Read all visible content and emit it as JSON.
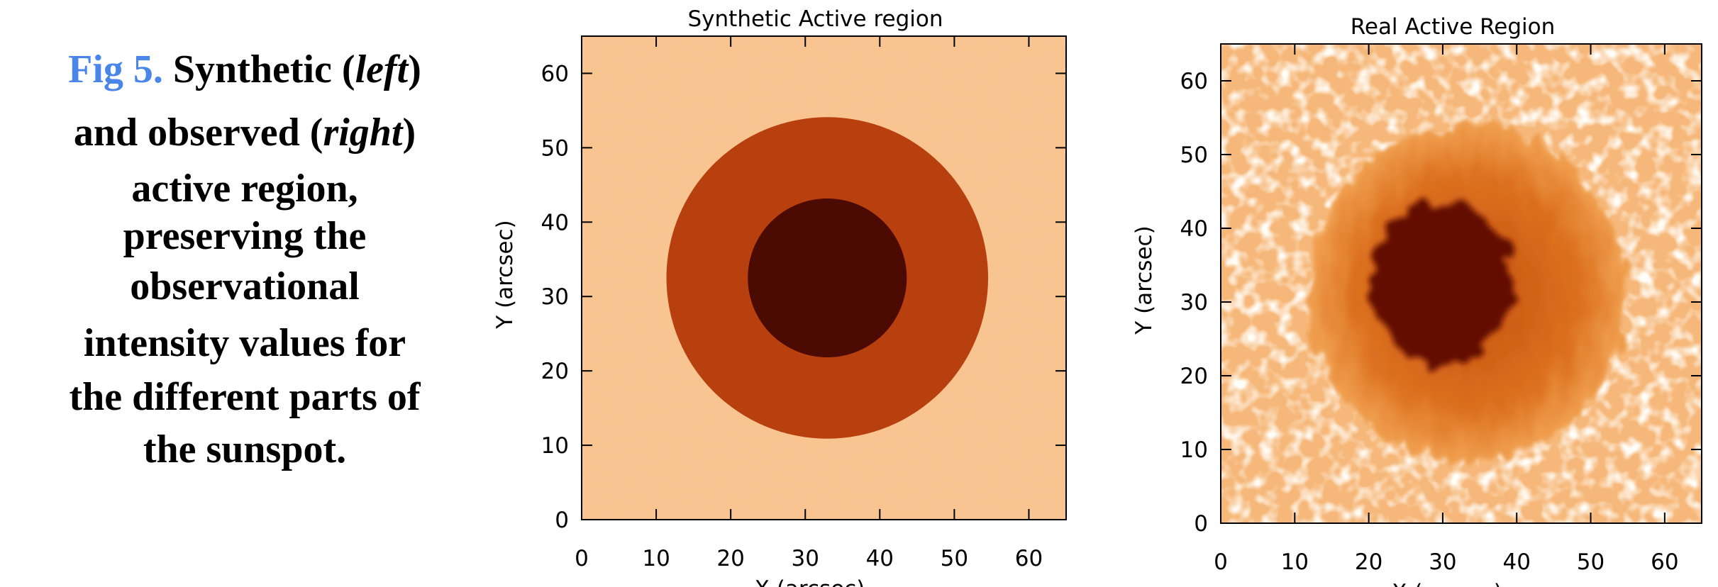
{
  "caption": {
    "label": "Fig 5.",
    "lines": [
      [
        {
          "text": "Synthetic ("
        },
        {
          "text": "left",
          "italic": true
        },
        {
          "text": ")"
        }
      ],
      [
        {
          "text": "and observed ("
        },
        {
          "text": "right",
          "italic": true
        },
        {
          "text": ")"
        }
      ],
      [
        {
          "text": "active region,"
        }
      ],
      [
        {
          "text": "preserving the"
        }
      ],
      [
        {
          "text": "observational"
        }
      ],
      [
        {
          "text": "intensity values for"
        }
      ],
      [
        {
          "text": "the different parts of"
        }
      ],
      [
        {
          "text": "the sunspot."
        }
      ]
    ]
  },
  "panels": [
    {
      "title": "Synthetic Active region",
      "xlabel": "X (arcsec)",
      "ylabel": "Y (arcsec)",
      "xlim": [
        0,
        65
      ],
      "ylim": [
        0,
        65
      ],
      "xticks": [
        0,
        10,
        20,
        30,
        40,
        50,
        60
      ],
      "yticks": [
        0,
        10,
        20,
        30,
        40,
        50,
        60
      ]
    },
    {
      "title": "Real Active Region",
      "xlabel": "X (arcsec)",
      "ylabel": "Y (arcsec)",
      "xlim": [
        0,
        65
      ],
      "ylim": [
        0,
        65
      ],
      "xticks": [
        0,
        10,
        20,
        30,
        40,
        50,
        60
      ],
      "yticks": [
        0,
        10,
        20,
        30,
        40,
        50,
        60
      ]
    }
  ]
}
